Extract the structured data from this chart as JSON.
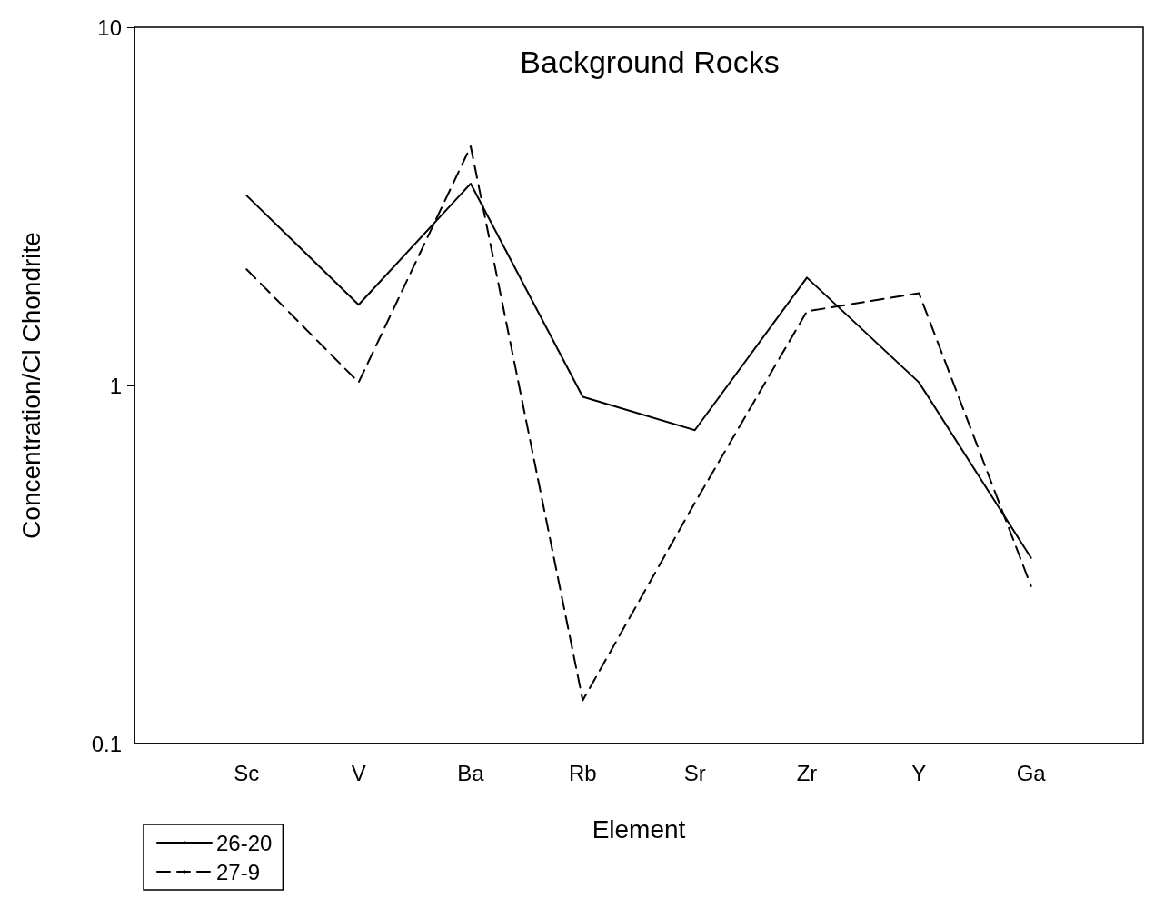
{
  "chart_data": {
    "type": "line",
    "title": "Background Rocks",
    "xlabel": "Element",
    "ylabel": "Concentration/Cl Chondrite",
    "categories": [
      null,
      "Sc",
      "V",
      "Ba",
      "Rb",
      "Sr",
      "Zr",
      "Y",
      "Ga",
      null
    ],
    "series": [
      {
        "name": "26-20",
        "color": "#000000",
        "line_style": "solid",
        "values": [
          null,
          3.39,
          1.68,
          3.66,
          0.93,
          0.75,
          2.0,
          1.02,
          0.33,
          null
        ]
      },
      {
        "name": "27-9",
        "color": "#000000",
        "line_style": "dashed",
        "values": [
          null,
          2.11,
          1.02,
          4.65,
          0.132,
          0.47,
          1.61,
          1.81,
          0.275,
          null
        ]
      }
    ],
    "log": "y",
    "ylim": [
      0.1,
      10
    ],
    "yticks": [
      0.1,
      1,
      10
    ],
    "marker": "none",
    "legend": "bottom left"
  }
}
